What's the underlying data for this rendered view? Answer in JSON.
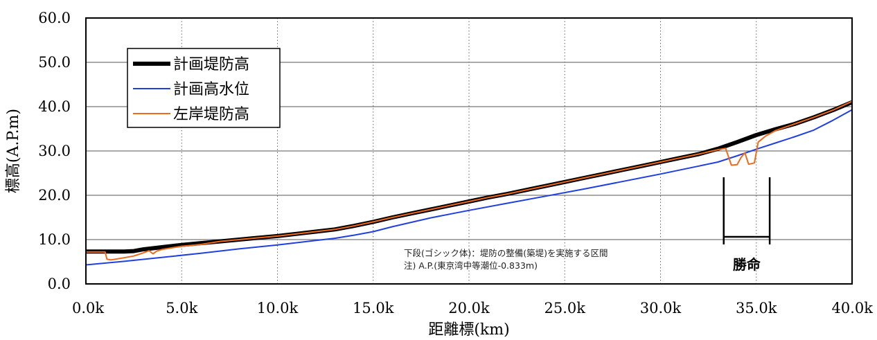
{
  "chart_data": {
    "type": "line",
    "xlabel": "距離標(km)",
    "ylabel": "標高(A.P.m)",
    "xlim": [
      0,
      40
    ],
    "ylim": [
      0,
      60
    ],
    "x_ticks": [
      0,
      5,
      10,
      15,
      20,
      25,
      30,
      35,
      40
    ],
    "x_tick_labels": [
      "0.0k",
      "5.0k",
      "10.0k",
      "15.0k",
      "20.0k",
      "25.0k",
      "30.0k",
      "35.0k",
      "40.0k"
    ],
    "y_ticks": [
      0,
      10,
      20,
      30,
      40,
      50,
      60
    ],
    "y_tick_labels": [
      "0.0",
      "10.0",
      "20.0",
      "30.0",
      "40.0",
      "50.0",
      "60.0"
    ],
    "grid": {
      "horizontal": "solid",
      "vertical": "dotted"
    },
    "legend_position": "top-left",
    "series": [
      {
        "name": "計画堤防高",
        "color": "#000000",
        "x": [
          0,
          1,
          2,
          2.5,
          3,
          4,
          5,
          6,
          7,
          8,
          9,
          10,
          11,
          12,
          13,
          14,
          15,
          16,
          17,
          18,
          19,
          20,
          21,
          22,
          23,
          24,
          25,
          26,
          27,
          28,
          29,
          30,
          31,
          32,
          33,
          34,
          35,
          36,
          37,
          38,
          39,
          40
        ],
        "y": [
          7.3,
          7.3,
          7.3,
          7.4,
          7.8,
          8.3,
          8.8,
          9.2,
          9.6,
          10.0,
          10.4,
          10.8,
          11.3,
          11.8,
          12.3,
          13.1,
          14.0,
          15.0,
          15.9,
          16.8,
          17.7,
          18.6,
          19.5,
          20.3,
          21.2,
          22.1,
          23.0,
          23.9,
          24.8,
          25.7,
          26.6,
          27.5,
          28.4,
          29.3,
          30.5,
          32.0,
          33.6,
          34.9,
          36.1,
          37.6,
          39.2,
          41.0
        ]
      },
      {
        "name": "計画高水位",
        "color": "#1f3fe0",
        "x": [
          0,
          2,
          4,
          6,
          8,
          10,
          12,
          13,
          14,
          15,
          16,
          18,
          20,
          22,
          24,
          26,
          28,
          30,
          32,
          33,
          34,
          35,
          36,
          37,
          38,
          39,
          40
        ],
        "y": [
          4.3,
          5.1,
          6.0,
          6.9,
          7.9,
          8.8,
          9.8,
          10.3,
          11.0,
          11.8,
          12.9,
          14.9,
          16.6,
          18.2,
          19.8,
          21.4,
          23.1,
          24.8,
          26.6,
          27.5,
          28.9,
          30.4,
          31.8,
          33.2,
          34.7,
          36.9,
          39.3
        ]
      },
      {
        "name": "左岸堤防高",
        "color": "#f06a1a",
        "x": [
          0,
          1,
          1.1,
          1.3,
          2,
          2.5,
          3,
          3.3,
          3.5,
          3.7,
          4,
          5,
          6,
          7,
          8,
          9,
          10,
          11,
          12,
          13,
          14,
          15,
          16,
          17,
          18,
          19,
          20,
          21,
          22,
          23,
          24,
          25,
          26,
          27,
          28,
          29,
          30,
          31,
          32,
          33,
          33.4,
          33.7,
          34.0,
          34.2,
          34.4,
          34.6,
          34.9,
          35.1,
          35.5,
          36,
          37,
          38,
          39,
          40
        ],
        "y": [
          7.2,
          7.2,
          5.6,
          5.4,
          5.9,
          6.3,
          7.0,
          7.5,
          6.8,
          7.4,
          7.8,
          8.5,
          8.9,
          9.6,
          10.0,
          10.4,
          10.8,
          11.3,
          11.8,
          12.3,
          13.1,
          14.0,
          15.0,
          15.9,
          16.8,
          17.7,
          18.6,
          19.5,
          20.3,
          21.2,
          22.1,
          23.0,
          23.9,
          24.8,
          25.7,
          26.6,
          27.5,
          28.4,
          29.3,
          30.3,
          30.6,
          26.8,
          26.9,
          28.5,
          29.6,
          27.0,
          27.3,
          32.0,
          33.4,
          34.6,
          36.1,
          37.6,
          39.2,
          41.2
        ]
      }
    ],
    "annotations": {
      "note_lines": [
        "下段(ゴシック体)：堤防の整備(築堤)を実施する区間",
        "注) A.P.(東京湾中等潮位-0.833m)"
      ],
      "section_label": "勝命",
      "section_range_km": [
        33.3,
        35.7
      ]
    }
  }
}
